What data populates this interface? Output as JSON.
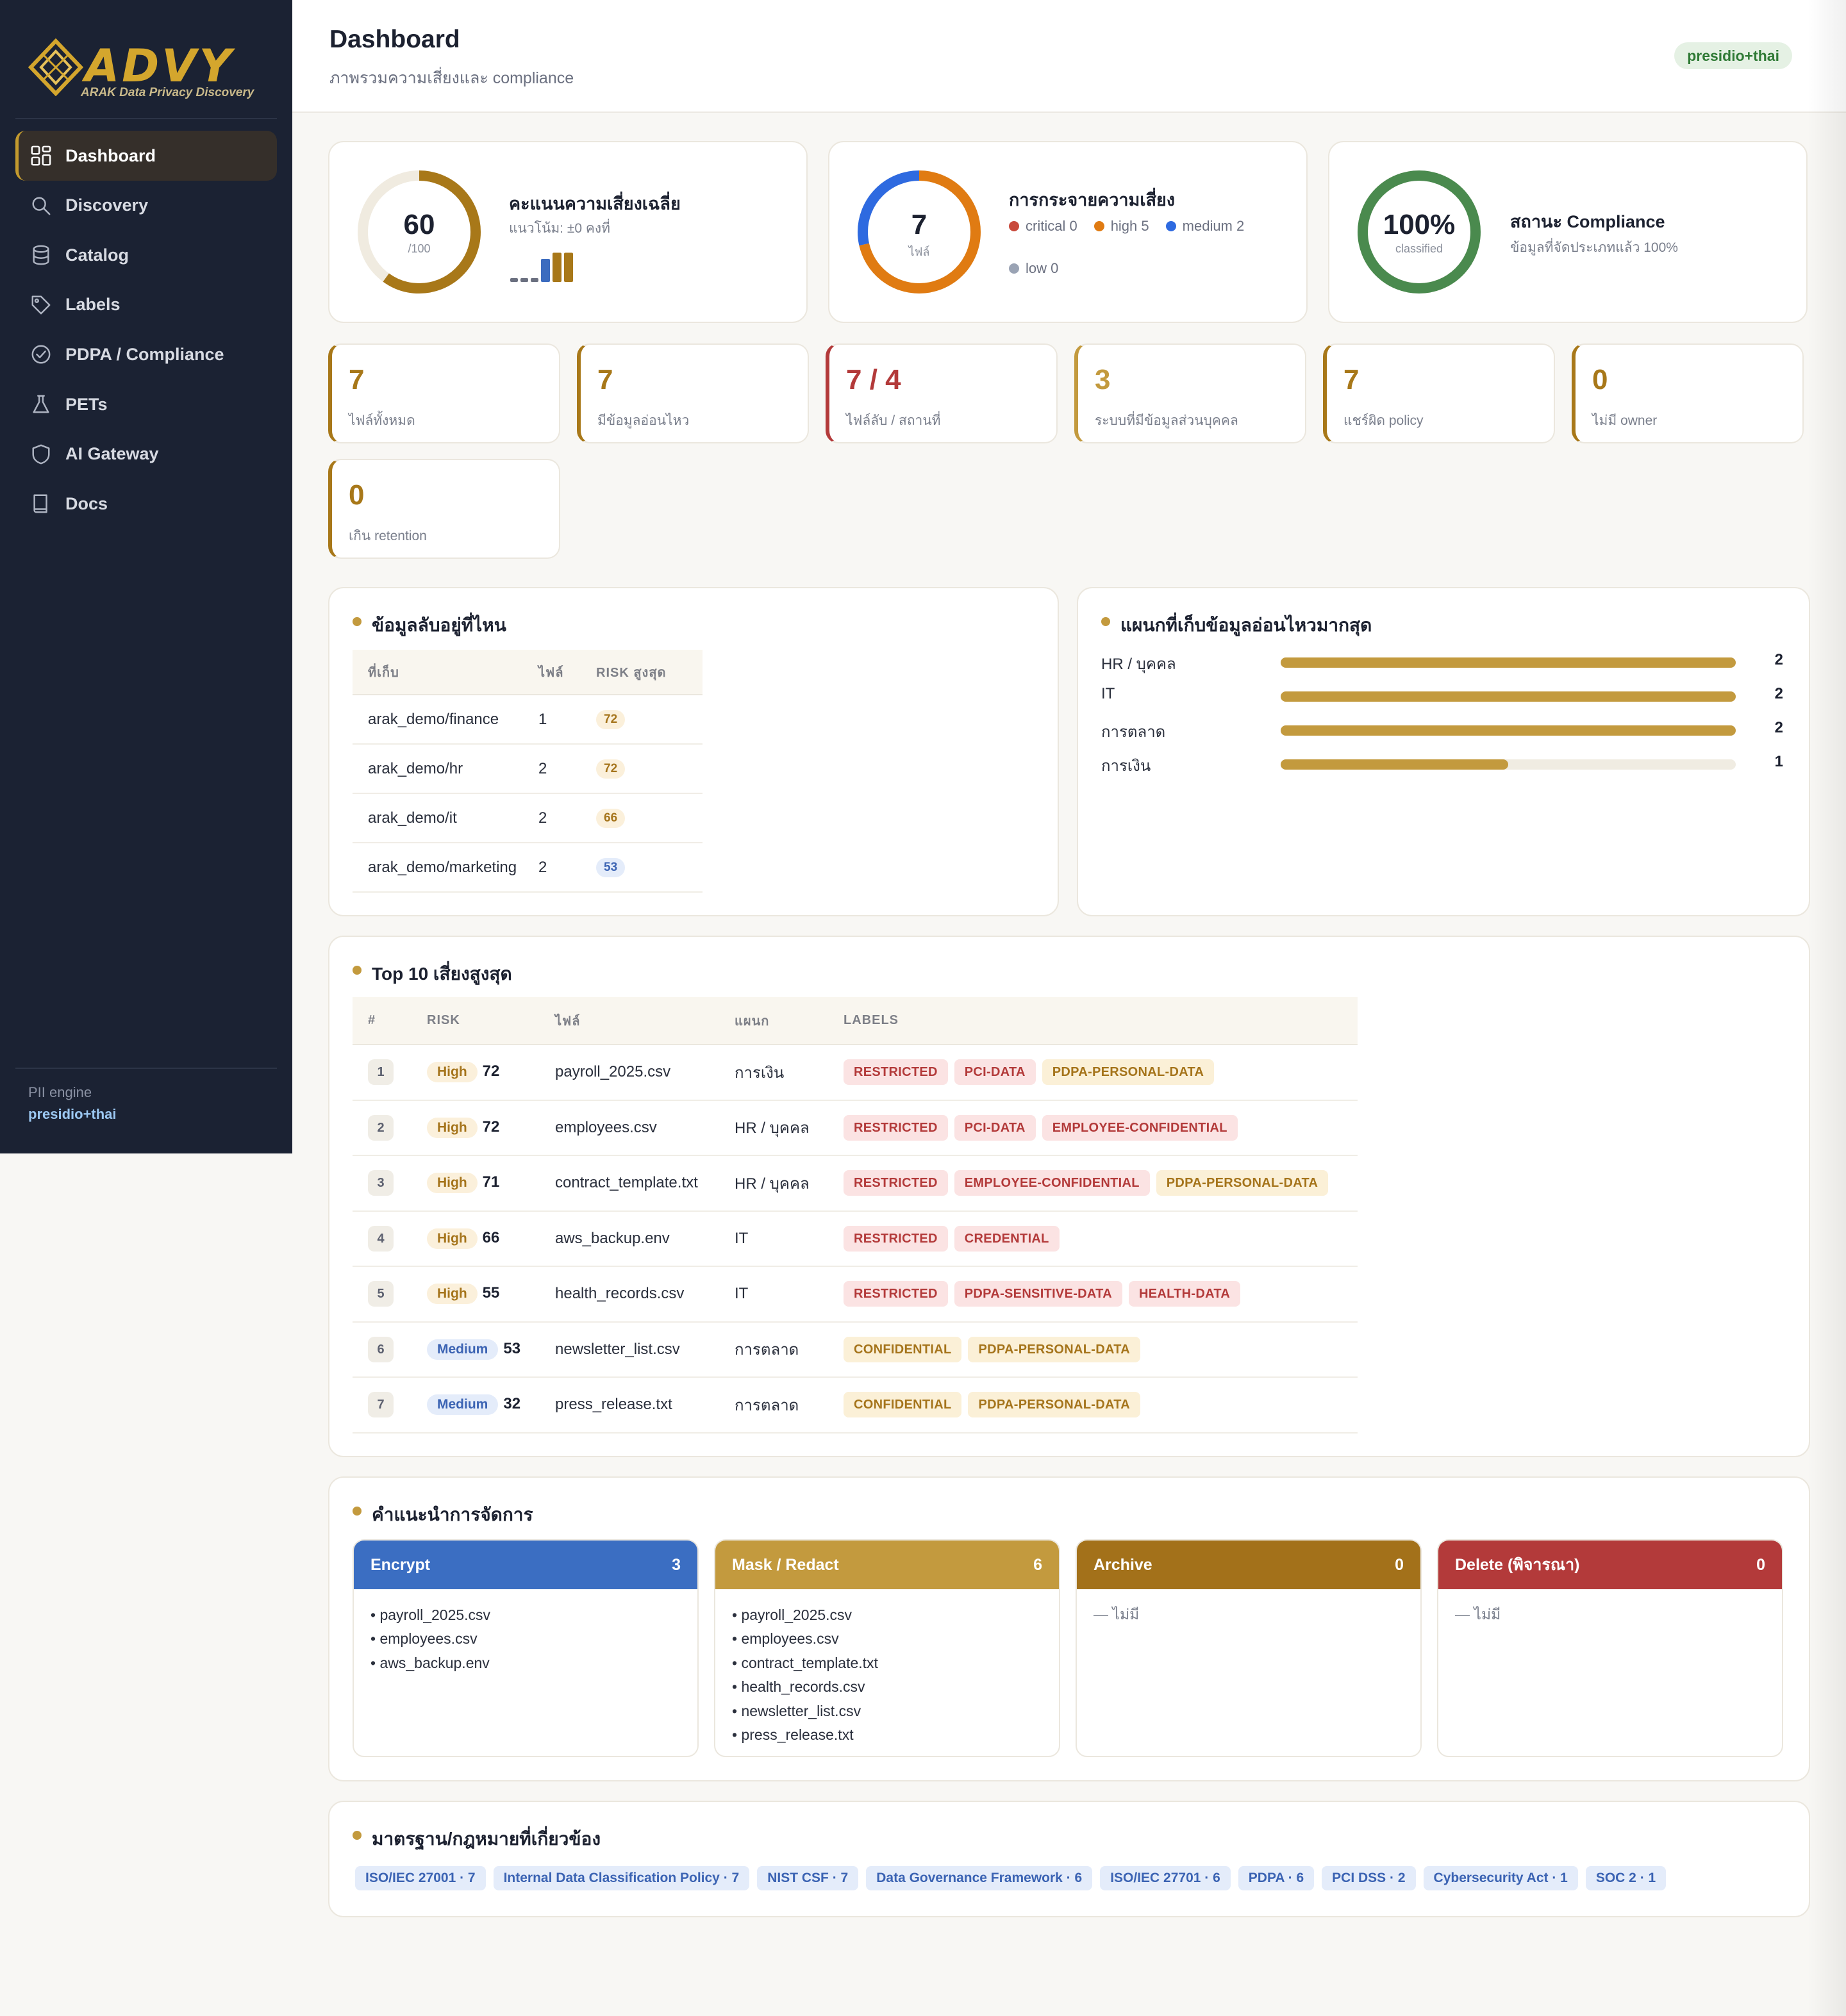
{
  "app": {
    "brand": "ADVY",
    "tagline": "ARAK Data Privacy Discovery"
  },
  "sidebar": {
    "items": [
      {
        "label": "Dashboard",
        "icon": "dashboard-grid-icon",
        "active": true
      },
      {
        "label": "Discovery",
        "icon": "search-icon"
      },
      {
        "label": "Catalog",
        "icon": "database-icon"
      },
      {
        "label": "Labels",
        "icon": "tag-icon"
      },
      {
        "label": "PDPA / Compliance",
        "icon": "check-circle-icon"
      },
      {
        "label": "PETs",
        "icon": "flask-icon"
      },
      {
        "label": "AI Gateway",
        "icon": "shield-icon"
      },
      {
        "label": "Docs",
        "icon": "book-icon"
      }
    ],
    "pii_engine_label": "PII engine",
    "pii_engine_value": "presidio+thai"
  },
  "header": {
    "title": "Dashboard",
    "subtitle": "ภาพรวมความเสี่ยงและ compliance",
    "engine_badge": "presidio+thai"
  },
  "risk_score": {
    "value": "60",
    "max_label": "/100",
    "score_fraction": 0.6,
    "title": "คะแนนความเสี่ยงเฉลี่ย",
    "trend": "แนวโน้ม: ±0 คงที่",
    "trend_bars": [
      0.1,
      0.1,
      0.1,
      0.75,
      0.95,
      0.95
    ]
  },
  "risk_distribution": {
    "total": "7",
    "unit": "ไฟล์",
    "title": "การกระจายความเสี่ยง",
    "legend": [
      {
        "label": "critical 0",
        "color": "#c94a3c",
        "count": 0
      },
      {
        "label": "high 5",
        "color": "#e07b12",
        "count": 5
      },
      {
        "label": "medium 2",
        "color": "#2e6ae0",
        "count": 2
      },
      {
        "label": "low 0",
        "color": "#9aa3b4",
        "count": 0
      }
    ]
  },
  "compliance": {
    "value": "100%",
    "sub": "classified",
    "fraction": 1.0,
    "title": "สถานะ Compliance",
    "detail": "ข้อมูลที่จัดประเภทแล้ว 100%"
  },
  "stats": [
    {
      "value": "7",
      "label": "ไฟล์ทั้งหมด",
      "style": "amber"
    },
    {
      "value": "7",
      "label": "มีข้อมูลอ่อนไหว",
      "style": "amber"
    },
    {
      "value": "7 / 4",
      "label": "ไฟล์ลับ / สถานที่",
      "style": "red"
    },
    {
      "value": "3",
      "label": "ระบบที่มีข้อมูลส่วนบุคคล",
      "style": "gold"
    },
    {
      "value": "7",
      "label": "แชร์ผิด policy",
      "style": "amber"
    },
    {
      "value": "0",
      "label": "ไม่มี owner",
      "style": "amber"
    },
    {
      "value": "0",
      "label": "เกิน retention",
      "style": "amber"
    }
  ],
  "locations": {
    "title": "ข้อมูลลับอยู่ที่ไหน",
    "headers": [
      "ที่เก็บ",
      "ไฟล์",
      "RISK สูงสุด"
    ],
    "rows": [
      {
        "path": "arak_demo/finance",
        "files": "1",
        "risk": "72",
        "level": "orange"
      },
      {
        "path": "arak_demo/hr",
        "files": "2",
        "risk": "72",
        "level": "orange"
      },
      {
        "path": "arak_demo/it",
        "files": "2",
        "risk": "66",
        "level": "orange"
      },
      {
        "path": "arak_demo/marketing",
        "files": "2",
        "risk": "53",
        "level": "blue"
      }
    ]
  },
  "departments": {
    "title": "แผนกที่เก็บข้อมูลอ่อนไหวมากสุด",
    "max": 2,
    "rows": [
      {
        "name": "HR / บุคคล",
        "value": 2
      },
      {
        "name": "IT",
        "value": 2
      },
      {
        "name": "การตลาด",
        "value": 2
      },
      {
        "name": "การเงิน",
        "value": 1
      }
    ]
  },
  "top_risks": {
    "title": "Top 10 เสี่ยงสูงสุด",
    "headers": [
      "#",
      "RISK",
      "ไฟล์",
      "แผนก",
      "LABELS"
    ],
    "rows": [
      {
        "rank": "1",
        "level": "High",
        "score": "72",
        "file": "payroll_2025.csv",
        "dept": "การเงิน",
        "labels": [
          {
            "t": "RESTRICTED",
            "c": "red"
          },
          {
            "t": "PCI-DATA",
            "c": "red"
          },
          {
            "t": "PDPA-PERSONAL-DATA",
            "c": "yellow"
          }
        ]
      },
      {
        "rank": "2",
        "level": "High",
        "score": "72",
        "file": "employees.csv",
        "dept": "HR / บุคคล",
        "labels": [
          {
            "t": "RESTRICTED",
            "c": "red"
          },
          {
            "t": "PCI-DATA",
            "c": "red"
          },
          {
            "t": "EMPLOYEE-CONFIDENTIAL",
            "c": "red"
          }
        ]
      },
      {
        "rank": "3",
        "level": "High",
        "score": "71",
        "file": "contract_template.txt",
        "dept": "HR / บุคคล",
        "labels": [
          {
            "t": "RESTRICTED",
            "c": "red"
          },
          {
            "t": "EMPLOYEE-CONFIDENTIAL",
            "c": "red"
          },
          {
            "t": "PDPA-PERSONAL-DATA",
            "c": "yellow"
          }
        ]
      },
      {
        "rank": "4",
        "level": "High",
        "score": "66",
        "file": "aws_backup.env",
        "dept": "IT",
        "labels": [
          {
            "t": "RESTRICTED",
            "c": "red"
          },
          {
            "t": "CREDENTIAL",
            "c": "red"
          }
        ]
      },
      {
        "rank": "5",
        "level": "High",
        "score": "55",
        "file": "health_records.csv",
        "dept": "IT",
        "labels": [
          {
            "t": "RESTRICTED",
            "c": "red"
          },
          {
            "t": "PDPA-SENSITIVE-DATA",
            "c": "red"
          },
          {
            "t": "HEALTH-DATA",
            "c": "red"
          }
        ]
      },
      {
        "rank": "6",
        "level": "Medium",
        "score": "53",
        "file": "newsletter_list.csv",
        "dept": "การตลาด",
        "labels": [
          {
            "t": "CONFIDENTIAL",
            "c": "yellow"
          },
          {
            "t": "PDPA-PERSONAL-DATA",
            "c": "yellow"
          }
        ]
      },
      {
        "rank": "7",
        "level": "Medium",
        "score": "32",
        "file": "press_release.txt",
        "dept": "การตลาด",
        "labels": [
          {
            "t": "CONFIDENTIAL",
            "c": "yellow"
          },
          {
            "t": "PDPA-PERSONAL-DATA",
            "c": "yellow"
          }
        ]
      }
    ]
  },
  "recommendations": {
    "title": "คำแนะนำการจัดการ",
    "empty_label": "— ไม่มี",
    "boxes": [
      {
        "label": "Encrypt",
        "count": "3",
        "color": "#3b6ec2",
        "files": [
          "payroll_2025.csv",
          "employees.csv",
          "aws_backup.env"
        ]
      },
      {
        "label": "Mask / Redact",
        "count": "6",
        "color": "#c39a3e",
        "files": [
          "payroll_2025.csv",
          "employees.csv",
          "contract_template.txt",
          "health_records.csv",
          "newsletter_list.csv",
          "press_release.txt"
        ]
      },
      {
        "label": "Archive",
        "count": "0",
        "color": "#a3711a",
        "files": []
      },
      {
        "label": "Delete (พิจารณา)",
        "count": "0",
        "color": "#b33a3a",
        "files": []
      }
    ]
  },
  "standards": {
    "title": "มาตรฐาน/กฎหมายที่เกี่ยวข้อง",
    "items": [
      "ISO/IEC 27001 · 7",
      "Internal Data Classification Policy · 7",
      "NIST CSF · 7",
      "Data Governance Framework · 6",
      "ISO/IEC 27701 · 6",
      "PDPA · 6",
      "PCI DSS · 2",
      "Cybersecurity Act · 1",
      "SOC 2 · 1"
    ]
  }
}
